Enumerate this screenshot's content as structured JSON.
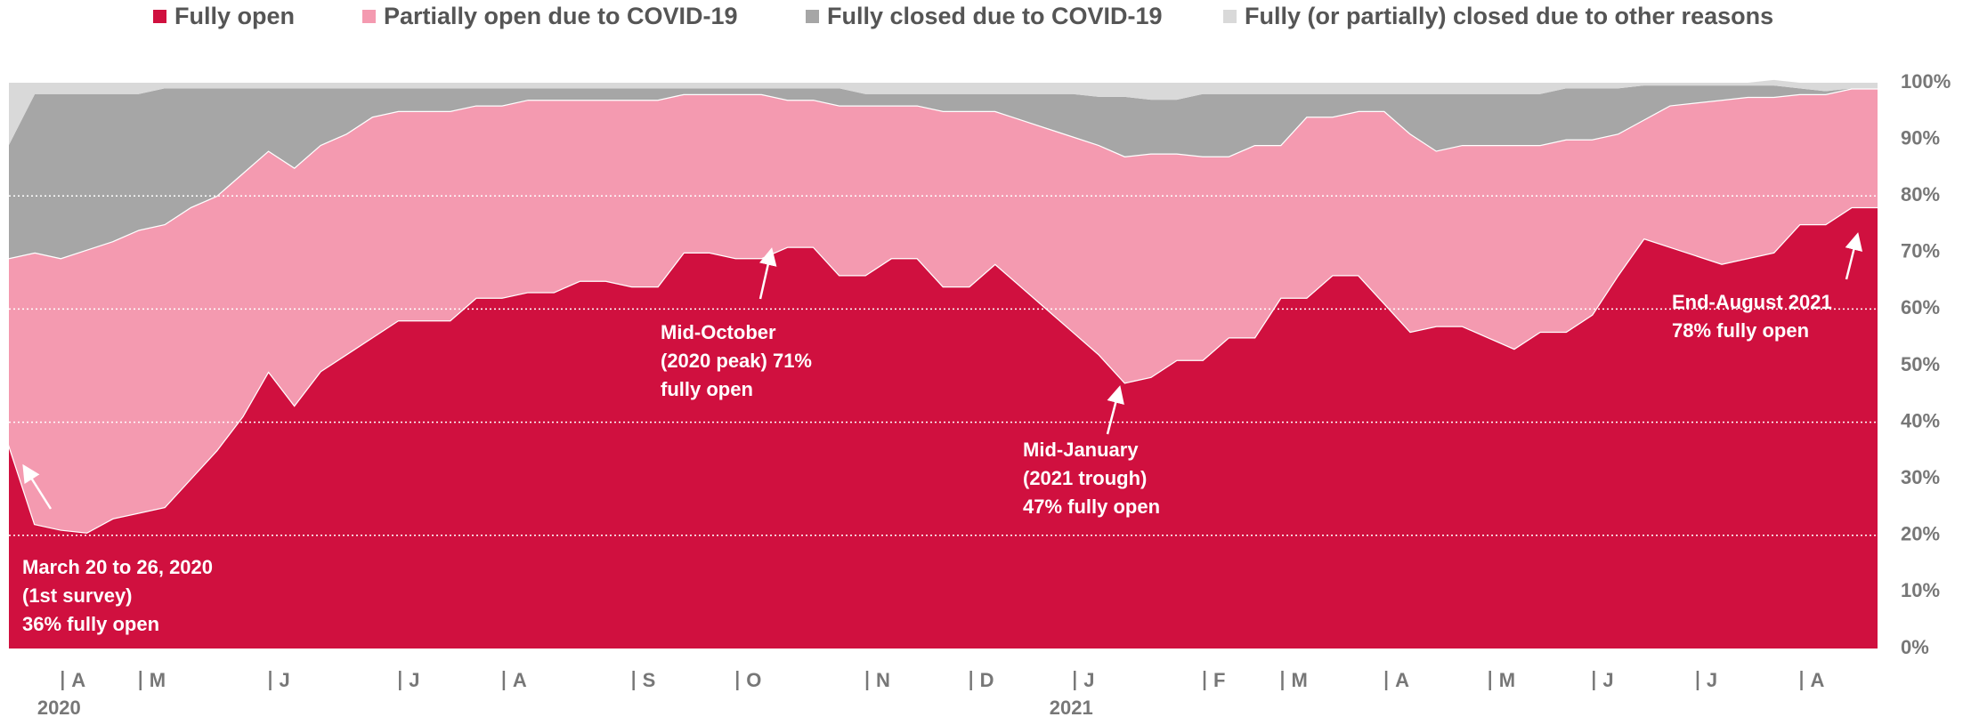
{
  "chart_data": {
    "type": "stacked_area",
    "categories": [
      null,
      null,
      "A",
      null,
      null,
      "M",
      null,
      null,
      null,
      null,
      "J",
      null,
      null,
      null,
      null,
      "J",
      null,
      null,
      null,
      "A",
      null,
      null,
      null,
      null,
      "S",
      null,
      null,
      null,
      "O",
      null,
      null,
      null,
      null,
      "N",
      null,
      null,
      null,
      "D",
      null,
      null,
      null,
      "J",
      null,
      null,
      null,
      null,
      "F",
      null,
      null,
      "M",
      null,
      null,
      null,
      "A",
      null,
      null,
      null,
      "M",
      null,
      null,
      null,
      "J",
      null,
      null,
      null,
      "J",
      null,
      null,
      null,
      "A",
      null,
      null,
      null
    ],
    "year_categories": [
      null,
      null,
      "2020",
      null,
      null,
      null,
      null,
      null,
      null,
      null,
      null,
      null,
      null,
      null,
      null,
      null,
      null,
      null,
      null,
      null,
      null,
      null,
      null,
      null,
      null,
      null,
      null,
      null,
      null,
      null,
      null,
      null,
      null,
      null,
      null,
      null,
      null,
      null,
      null,
      null,
      null,
      "2021",
      null,
      null,
      null,
      null,
      null,
      null,
      null,
      null,
      null,
      null,
      null,
      null,
      null,
      null,
      null,
      null,
      null,
      null,
      null,
      null,
      null,
      null,
      null,
      null,
      null,
      null,
      null,
      null,
      null,
      null,
      null
    ],
    "series": [
      {
        "name": "Fully open",
        "color": "#d0103f",
        "values": [
          36,
          22,
          21,
          20.5,
          23,
          24,
          25,
          30,
          35,
          41,
          49,
          43,
          49,
          52,
          55,
          58,
          58,
          58,
          62,
          62,
          63,
          63,
          65,
          65,
          64,
          64,
          70,
          70,
          69,
          69,
          71,
          71,
          66,
          66,
          69,
          69,
          64,
          64,
          68,
          64,
          60,
          56,
          52,
          47,
          48,
          51,
          51,
          55,
          55,
          62,
          62,
          66,
          66,
          61,
          56,
          57,
          57,
          55,
          53,
          56,
          56,
          59,
          66,
          72.5,
          71,
          69.5,
          68,
          69,
          70,
          75,
          75,
          78,
          78
        ]
      },
      {
        "name": "Partially open due to COVID-19",
        "color": "#f49ab0",
        "values": [
          33,
          48,
          48,
          50,
          49,
          50,
          50,
          48,
          45,
          43,
          39,
          42,
          40,
          39,
          39,
          37,
          37,
          37,
          34,
          34,
          34,
          34,
          32,
          32,
          33,
          33,
          28,
          28,
          29,
          29,
          26,
          26,
          30,
          30,
          27,
          27,
          31,
          31,
          27,
          29.5,
          32,
          34.5,
          37,
          40,
          39.5,
          36.5,
          36,
          32,
          34,
          27,
          32,
          28,
          29,
          34,
          35,
          31,
          32,
          34,
          36,
          33,
          34,
          31,
          25,
          21,
          25,
          27,
          29,
          28.5,
          27.5,
          23,
          23,
          21,
          21
        ]
      },
      {
        "name": "Fully closed due to COVID-19",
        "color": "#a6a6a6",
        "values": [
          20,
          28,
          29,
          27.5,
          26,
          24,
          24,
          21,
          19,
          15,
          11,
          14,
          10,
          8,
          5,
          4,
          4,
          4,
          3,
          3,
          2,
          2,
          2,
          2,
          2,
          2,
          1,
          1,
          1,
          1,
          2,
          2,
          3,
          2,
          2,
          2,
          3,
          3,
          3,
          4.5,
          6,
          7.5,
          8.5,
          10.5,
          9.5,
          9.5,
          11,
          11,
          9,
          9,
          4,
          4,
          3,
          3,
          7,
          10,
          9,
          9,
          9,
          9,
          9,
          9,
          8,
          6,
          3.5,
          3,
          2.5,
          2,
          2,
          1,
          0.5,
          0,
          0
        ]
      },
      {
        "name": "Fully (or partially) closed due to other reasons",
        "color": "#d9d9d9",
        "values": [
          11,
          2,
          2,
          2,
          2,
          2,
          1,
          1,
          1,
          1,
          1,
          1,
          1,
          1,
          1,
          1,
          1,
          1,
          1,
          1,
          1,
          1,
          1,
          1,
          1,
          1,
          1,
          1,
          1,
          1,
          1,
          1,
          1,
          2,
          2,
          2,
          2,
          2,
          2,
          2,
          2,
          2,
          2.5,
          2.5,
          3,
          3,
          2,
          2,
          2,
          2,
          2,
          2,
          2,
          2,
          2,
          2,
          2,
          2,
          2,
          2,
          1,
          1,
          1,
          0.5,
          0.5,
          0.5,
          0.5,
          0.5,
          1,
          1,
          1.5,
          1,
          1
        ]
      }
    ],
    "ylim": [
      0,
      100
    ],
    "yticks": [
      {
        "value": 0,
        "label": "0%"
      },
      {
        "value": 10,
        "label": "10%"
      },
      {
        "value": 20,
        "label": "20%"
      },
      {
        "value": 30,
        "label": "30%"
      },
      {
        "value": 40,
        "label": "40%"
      },
      {
        "value": 50,
        "label": "50%"
      },
      {
        "value": 60,
        "label": "60%"
      },
      {
        "value": 70,
        "label": "70%"
      },
      {
        "value": 80,
        "label": "80%"
      },
      {
        "value": 90,
        "label": "90%"
      },
      {
        "value": 100,
        "label": "100%"
      }
    ],
    "grid_ticks": [
      20,
      40,
      60,
      80
    ],
    "grid_color": "#ffffff",
    "legend": "top",
    "annotations": [
      {
        "lines": [
          "March 20 to 26, 2020",
          "(1st survey)",
          "36% fully open"
        ]
      },
      {
        "lines": [
          "Mid-October",
          "(2020 peak) 71%",
          "fully open"
        ]
      },
      {
        "lines": [
          "Mid-January",
          "(2021 trough)",
          "47% fully open"
        ]
      },
      {
        "lines": [
          "End-August 2021",
          "78% fully open"
        ]
      }
    ]
  }
}
